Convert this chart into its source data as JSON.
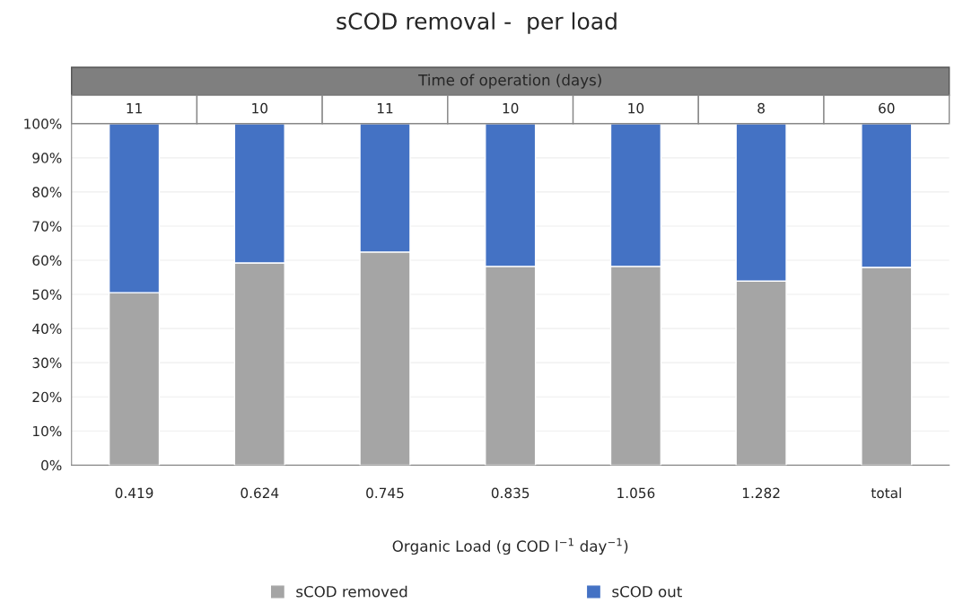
{
  "chart_data": {
    "type": "bar",
    "title": "sCOD removal -  per load",
    "xlabel": "Organic Load (g COD l$^{−1}$ day$^{−1}$)",
    "categories": [
      "0.419",
      "0.624",
      "0.745",
      "0.835",
      "1.056",
      "1.282",
      "total"
    ],
    "stacked": true,
    "series": [
      {
        "name": "sCOD removed",
        "color": "#a5a5a5",
        "values": [
          50.5,
          59.2,
          62.4,
          58.2,
          58.2,
          53.9,
          57.9
        ]
      },
      {
        "name": "sCOD out",
        "color": "#4472c4",
        "values": [
          49.5,
          40.8,
          37.6,
          41.8,
          41.8,
          46.1,
          42.1
        ]
      }
    ],
    "ylim": [
      0,
      100
    ],
    "yticks": [
      {
        "value": 0,
        "label": "0%"
      },
      {
        "value": 10,
        "label": "10%"
      },
      {
        "value": 20,
        "label": "20%"
      },
      {
        "value": 30,
        "label": "30%"
      },
      {
        "value": 40,
        "label": "40%"
      },
      {
        "value": 50,
        "label": "50%"
      },
      {
        "value": 60,
        "label": "60%"
      },
      {
        "value": 70,
        "label": "70%"
      },
      {
        "value": 80,
        "label": "80%"
      },
      {
        "value": 90,
        "label": "90%"
      },
      {
        "value": 100,
        "label": "100%"
      }
    ],
    "grid": "y",
    "legend": "bottom",
    "annotations": [
      "Time of operation (days)",
      "11",
      "10",
      "11",
      "10",
      "10",
      "8",
      "60"
    ]
  }
}
